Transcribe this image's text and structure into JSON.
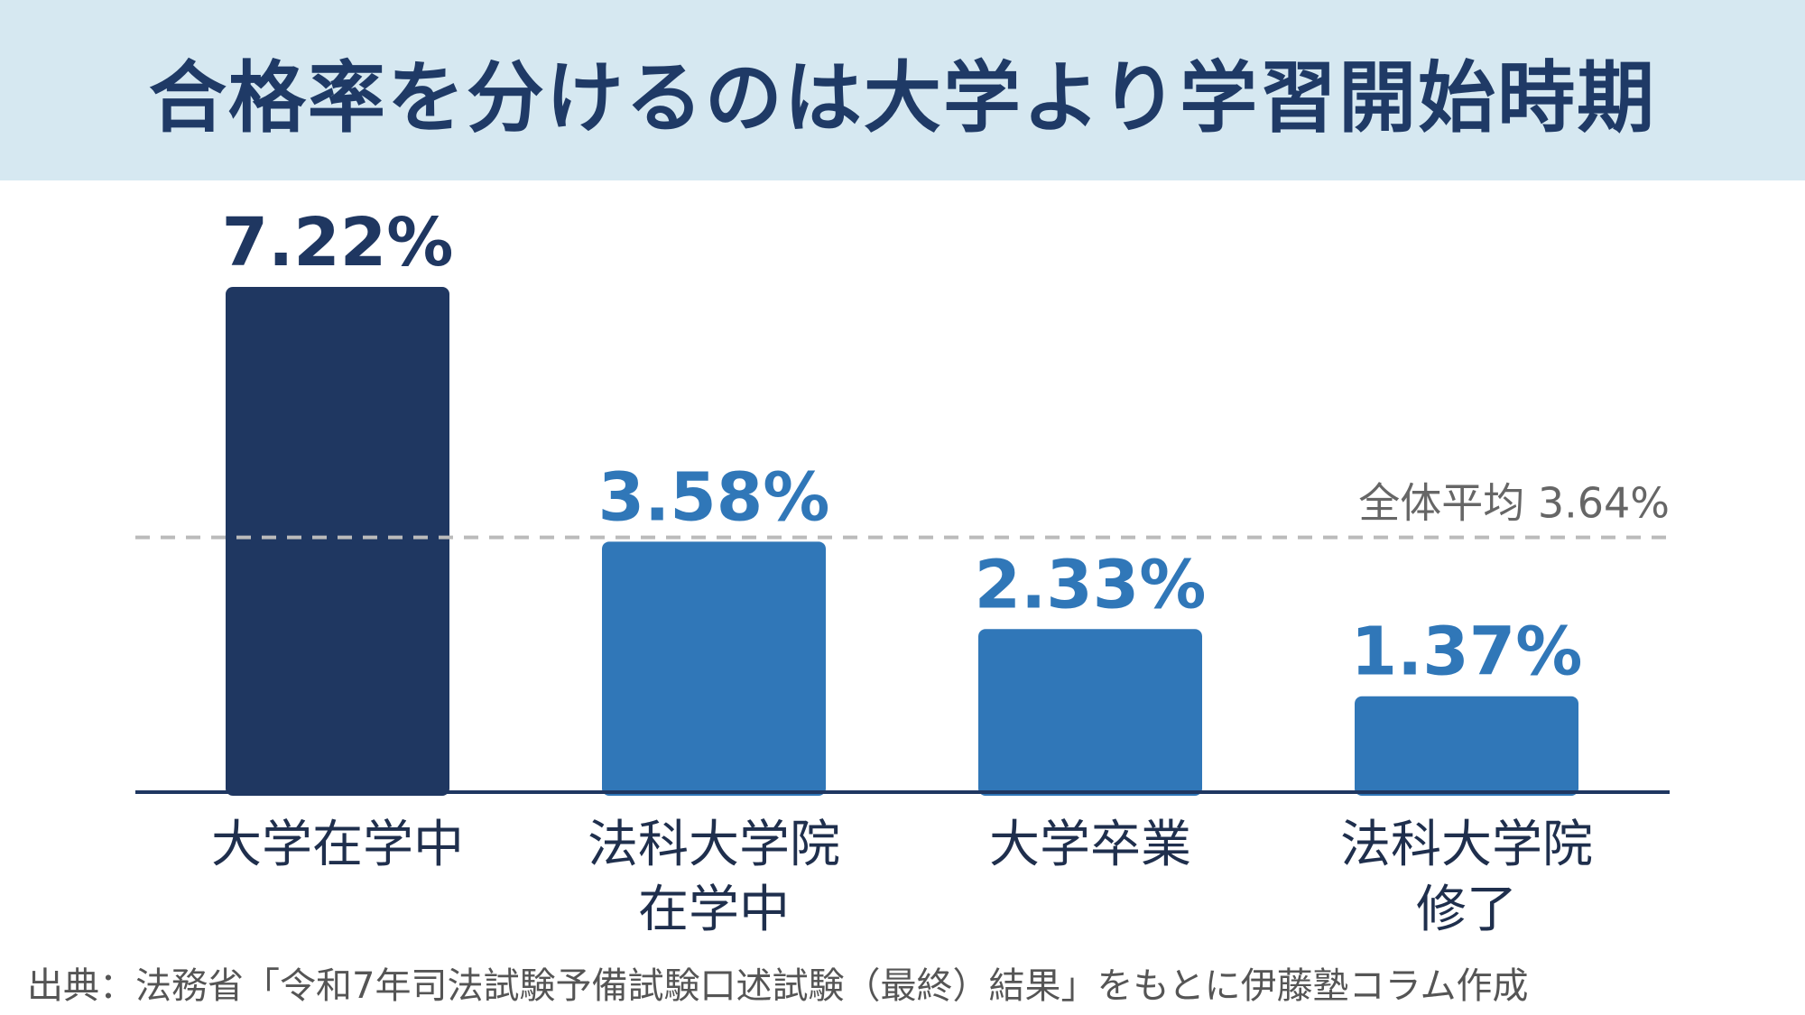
{
  "title": "合格率を分けるのは大学より学習開始時期",
  "colors": {
    "header_bg": "#d6e8f1",
    "title": "#1f3a66",
    "highlight_bar": "#1f3761",
    "bar": "#3077b8",
    "highlight_label": "#1f3761",
    "label": "#3077b8",
    "reference_line": "#bbbbbb",
    "axis": "#1f3761"
  },
  "chart_data": {
    "type": "bar",
    "categories": [
      [
        "大学在学中"
      ],
      [
        "法科大学院",
        "在学中"
      ],
      [
        "大学卒業"
      ],
      [
        "法科大学院",
        "修了"
      ]
    ],
    "values": [
      7.22,
      3.58,
      2.33,
      1.37
    ],
    "value_labels": [
      "7.22%",
      "3.58%",
      "2.33%",
      "1.37%"
    ],
    "highlight_index": 0,
    "reference_line": {
      "value": 3.64,
      "label": "全体平均 3.64%"
    },
    "ylim": [
      0,
      7.22
    ],
    "grid": false,
    "xlabel": "",
    "ylabel": ""
  },
  "source": "出典：法務省「令和7年司法試験予備試験口述試験（最終）結果」をもとに伊藤塾コラム作成"
}
